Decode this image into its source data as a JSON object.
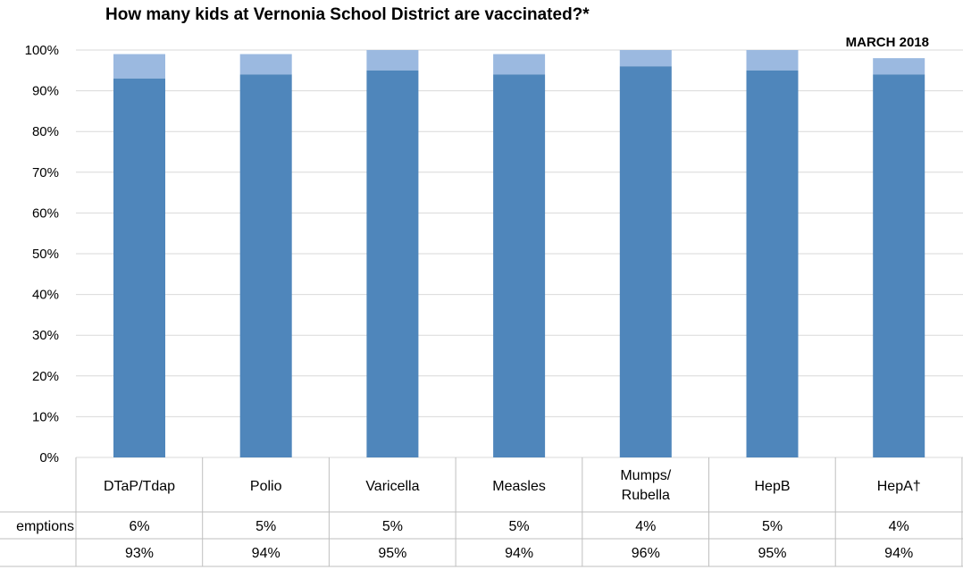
{
  "chart_data": {
    "type": "bar",
    "title": "How many kids at Vernonia School District are vaccinated?*",
    "annotation": "MARCH 2018",
    "categories": [
      "DTaP/Tdap",
      "Polio",
      "Varicella",
      "Measles",
      "Mumps/\nRubella",
      "HepB",
      "HepA†"
    ],
    "series": [
      {
        "values": [
          93,
          94,
          95,
          94,
          96,
          95,
          94
        ]
      },
      {
        "name": "Exemptions",
        "values": [
          6,
          5,
          5,
          5,
          4,
          5,
          4
        ]
      }
    ],
    "series_labels_visible": [
      "emptions",
      ""
    ],
    "yticks": [
      "0%",
      "10%",
      "20%",
      "30%",
      "40%",
      "50%",
      "60%",
      "70%",
      "80%",
      "90%",
      "100%"
    ],
    "ylim": [
      0,
      100
    ],
    "stacked": true,
    "grid": true,
    "table_labels": [
      [
        "6%",
        "5%",
        "5%",
        "5%",
        "4%",
        "5%",
        "4%"
      ],
      [
        "93%",
        "94%",
        "95%",
        "94%",
        "96%",
        "95%",
        "94%"
      ]
    ],
    "colors": {
      "primary": "#4f86bb",
      "secondary": "#9bb9e0",
      "grid": "#d9d9d9",
      "table_border": "#bfbfbf"
    }
  }
}
